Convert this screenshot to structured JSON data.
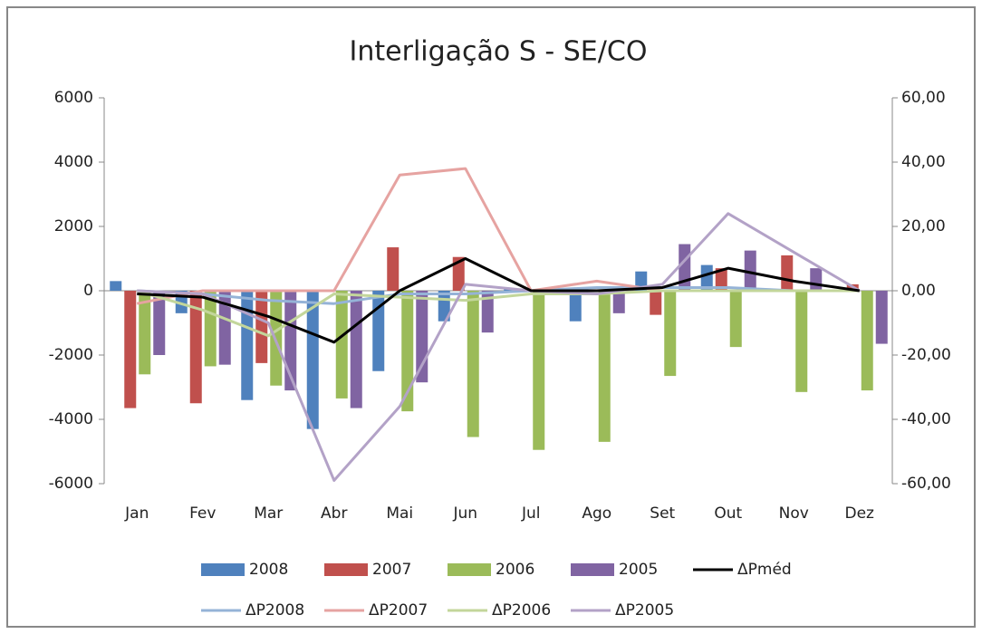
{
  "chart_data": {
    "type": "bar-line",
    "title": "Interligação S - SE/CO",
    "categories": [
      "Jan",
      "Fev",
      "Mar",
      "Abr",
      "Mai",
      "Jun",
      "Jul",
      "Ago",
      "Set",
      "Out",
      "Nov",
      "Dez"
    ],
    "ylim": [
      -6000,
      6000
    ],
    "yticks": [
      -6000,
      -4000,
      -2000,
      0,
      2000,
      4000,
      6000
    ],
    "y2lim": [
      -60,
      60
    ],
    "y2ticks": [
      {
        "value": -60,
        "label": "-60,00"
      },
      {
        "value": -40,
        "label": "-40,00"
      },
      {
        "value": -20,
        "label": "-20,00"
      },
      {
        "value": 0,
        "label": "0,00"
      },
      {
        "value": 20,
        "label": "20,00"
      },
      {
        "value": 40,
        "label": "40,00"
      },
      {
        "value": 60,
        "label": "60,00"
      }
    ],
    "series": [
      {
        "name": "2008",
        "kind": "bar",
        "color": "#4f81bd",
        "values": [
          300,
          -700,
          -3400,
          -4300,
          -2500,
          -950,
          50,
          -950,
          600,
          800,
          0,
          0
        ]
      },
      {
        "name": "2007",
        "kind": "bar",
        "color": "#c0504d",
        "values": [
          -3650,
          -3500,
          -2250,
          0,
          1350,
          1050,
          0,
          0,
          -750,
          700,
          1100,
          200
        ]
      },
      {
        "name": "2006",
        "kind": "bar",
        "color": "#9bbb59",
        "values": [
          -2600,
          -2350,
          -2950,
          -3350,
          -3750,
          -4550,
          -4950,
          -4700,
          -2650,
          -1750,
          -3150,
          -3100
        ]
      },
      {
        "name": "2005",
        "kind": "bar",
        "color": "#8064a2",
        "values": [
          -2000,
          -2300,
          -3100,
          -3650,
          -2850,
          -1300,
          0,
          -700,
          1450,
          1250,
          700,
          -1650
        ]
      },
      {
        "name": "ΔPméd",
        "kind": "line",
        "axis": "y2",
        "color": "#000000",
        "values": [
          -1,
          -2,
          -8,
          -16,
          0,
          10,
          0,
          0,
          1,
          7,
          3,
          0
        ]
      },
      {
        "name": "ΔP2008",
        "kind": "line",
        "axis": "y2",
        "color": "#95b3d7",
        "values": [
          0,
          -1,
          -3,
          -4,
          -1,
          -1,
          0,
          1,
          1,
          1,
          0,
          0
        ]
      },
      {
        "name": "ΔP2007",
        "kind": "line",
        "axis": "y2",
        "color": "#e6a3a1",
        "values": [
          -4,
          0,
          0,
          0,
          36,
          38,
          0,
          3,
          0,
          0,
          0,
          0
        ]
      },
      {
        "name": "ΔP2006",
        "kind": "line",
        "axis": "y2",
        "color": "#c3d69b",
        "values": [
          0,
          -6,
          -14,
          -1,
          -2,
          -3,
          -1,
          -1,
          0,
          0,
          0,
          0
        ]
      },
      {
        "name": "ΔP2005",
        "kind": "line",
        "axis": "y2",
        "color": "#b3a2c7",
        "values": [
          0,
          -1,
          -10,
          -59,
          -36,
          2,
          0,
          -1,
          2,
          24,
          12,
          0
        ]
      }
    ]
  }
}
